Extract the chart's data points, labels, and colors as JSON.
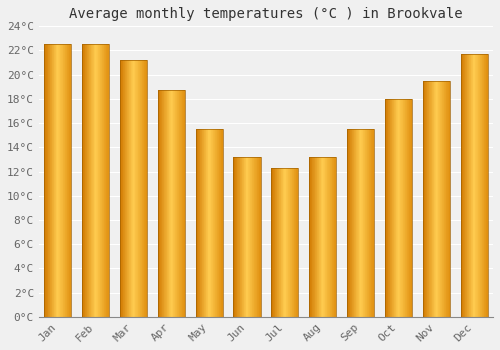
{
  "title": "Average monthly temperatures (°C ) in Brookvale",
  "months": [
    "Jan",
    "Feb",
    "Mar",
    "Apr",
    "May",
    "Jun",
    "Jul",
    "Aug",
    "Sep",
    "Oct",
    "Nov",
    "Dec"
  ],
  "values": [
    22.5,
    22.5,
    21.2,
    18.7,
    15.5,
    13.2,
    12.3,
    13.2,
    15.5,
    18.0,
    19.5,
    21.7
  ],
  "bar_color_left": "#E8840A",
  "bar_color_mid": "#FFD060",
  "bar_color_right": "#FFA020",
  "ylim": [
    0,
    24
  ],
  "yticks": [
    0,
    2,
    4,
    6,
    8,
    10,
    12,
    14,
    16,
    18,
    20,
    22,
    24
  ],
  "ytick_labels": [
    "0°C",
    "2°C",
    "4°C",
    "6°C",
    "8°C",
    "10°C",
    "12°C",
    "14°C",
    "16°C",
    "18°C",
    "20°C",
    "22°C",
    "24°C"
  ],
  "background_color": "#f0f0f0",
  "grid_color": "#ffffff",
  "title_fontsize": 10,
  "tick_fontsize": 8,
  "bar_edge_color": "#C07000"
}
